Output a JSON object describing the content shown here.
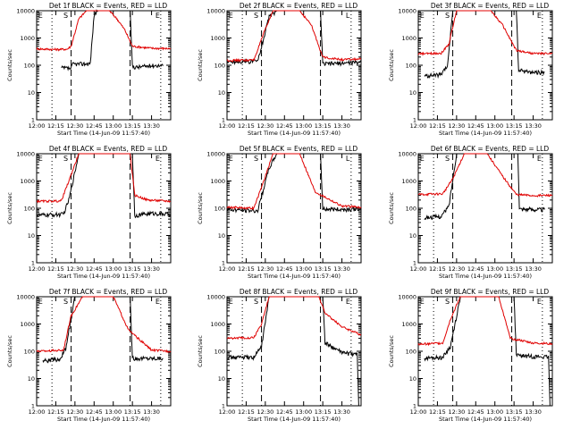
{
  "figure": {
    "background": "#ffffff",
    "event_color": "#000000",
    "lld_color": "#e00000"
  },
  "chart_data": [
    {
      "type": "line",
      "title": "Det 1f BLACK = Events, RED = LLD",
      "xlabel": "Start Time (14-Jun-09 11:57:40)",
      "ylabel": "Counts/sec",
      "xticks": [
        "12:00",
        "12:15",
        "12:30",
        "12:45",
        "13:00",
        "13:15",
        "13:30"
      ],
      "yticks": [
        "1",
        "10",
        "100",
        "1000",
        "10000"
      ],
      "markers": [
        "E",
        "S",
        "E"
      ],
      "series": [
        {
          "name": "Events",
          "points": [
            [
              12.32,
              80
            ],
            [
              12.45,
              75
            ],
            [
              12.47,
              110
            ],
            [
              12.7,
              115
            ],
            [
              12.75,
              7000
            ],
            [
              12.8,
              10000
            ],
            [
              13.0,
              10000
            ],
            [
              13.22,
              10000
            ],
            [
              13.25,
              90
            ],
            [
              13.3,
              85
            ],
            [
              13.55,
              100
            ],
            [
              13.65,
              95
            ]
          ]
        },
        {
          "name": "LLD",
          "points": [
            [
              12.0,
              400
            ],
            [
              12.25,
              380
            ],
            [
              12.4,
              390
            ],
            [
              12.45,
              500
            ],
            [
              12.55,
              5000
            ],
            [
              12.65,
              10000
            ],
            [
              12.95,
              10000
            ],
            [
              13.05,
              5000
            ],
            [
              13.15,
              2000
            ],
            [
              13.25,
              500
            ],
            [
              13.5,
              420
            ],
            [
              13.75,
              410
            ]
          ]
        }
      ]
    },
    {
      "type": "line",
      "title": "Det 2f BLACK = Events, RED = LLD",
      "xlabel": "Start Time (14-Jun-09 11:57:40)",
      "ylabel": "Counts/sec",
      "xticks": [
        "12:00",
        "12:15",
        "12:30",
        "12:45",
        "13:00",
        "13:15",
        "13:30"
      ],
      "yticks": [
        "1",
        "10",
        "100",
        "1000",
        "10000"
      ],
      "markers": [
        "E",
        "S",
        "L"
      ],
      "series": [
        {
          "name": "Events",
          "points": [
            [
              12.0,
              130
            ],
            [
              12.4,
              140
            ],
            [
              12.55,
              6000
            ],
            [
              12.65,
              10000
            ],
            [
              13.22,
              10000
            ],
            [
              13.25,
              110
            ],
            [
              13.5,
              120
            ],
            [
              13.75,
              130
            ]
          ]
        },
        {
          "name": "LLD",
          "points": [
            [
              12.0,
              150
            ],
            [
              12.35,
              155
            ],
            [
              12.48,
              1500
            ],
            [
              12.6,
              10000
            ],
            [
              12.95,
              10000
            ],
            [
              13.1,
              3000
            ],
            [
              13.25,
              200
            ],
            [
              13.5,
              160
            ],
            [
              13.75,
              170
            ]
          ]
        }
      ]
    },
    {
      "type": "line",
      "title": "Det 3f BLACK = Events, RED = LLD",
      "xlabel": "Start Time (14-Jun-09 11:57:40)",
      "ylabel": "Counts/sec",
      "xticks": [
        "12:00",
        "12:15",
        "12:30",
        "12:45",
        "13:00",
        "13:15",
        "13:30"
      ],
      "yticks": [
        "1",
        "10",
        "100",
        "1000",
        "10000"
      ],
      "markers": [
        "E",
        "S",
        "E"
      ],
      "series": [
        {
          "name": "Events",
          "points": [
            [
              12.08,
              40
            ],
            [
              12.3,
              45
            ],
            [
              12.38,
              90
            ],
            [
              12.45,
              10000
            ],
            [
              13.28,
              10000
            ],
            [
              13.31,
              65
            ],
            [
              13.5,
              55
            ],
            [
              13.65,
              55
            ]
          ]
        },
        {
          "name": "LLD",
          "points": [
            [
              12.0,
              260
            ],
            [
              12.3,
              280
            ],
            [
              12.4,
              600
            ],
            [
              12.5,
              10000
            ],
            [
              12.95,
              10000
            ],
            [
              13.1,
              3000
            ],
            [
              13.28,
              350
            ],
            [
              13.5,
              270
            ],
            [
              13.75,
              270
            ]
          ]
        }
      ]
    },
    {
      "type": "line",
      "title": "Det 4f BLACK = Events, RED = LLD",
      "xlabel": "Start Time (14-Jun-09 11:57:40)",
      "ylabel": "Counts/sec",
      "xticks": [
        "12:00",
        "12:15",
        "12:30",
        "12:45",
        "13:00",
        "13:15",
        "13:30"
      ],
      "yticks": [
        "1",
        "10",
        "100",
        "1000",
        "10000"
      ],
      "markers": [
        "E",
        "S",
        "E"
      ],
      "series": [
        {
          "name": "Events",
          "points": [
            [
              12.0,
              55
            ],
            [
              12.35,
              60
            ],
            [
              12.42,
              200
            ],
            [
              12.55,
              10000
            ],
            [
              13.25,
              10000
            ],
            [
              13.28,
              55
            ],
            [
              13.5,
              65
            ],
            [
              13.75,
              60
            ]
          ]
        },
        {
          "name": "LLD",
          "points": [
            [
              12.0,
              180
            ],
            [
              12.32,
              185
            ],
            [
              12.4,
              700
            ],
            [
              12.55,
              10000
            ],
            [
              13.22,
              10000
            ],
            [
              13.28,
              300
            ],
            [
              13.45,
              200
            ],
            [
              13.75,
              180
            ]
          ]
        }
      ]
    },
    {
      "type": "line",
      "title": "Det 5f BLACK = Events, RED = LLD",
      "xlabel": "Start Time (14-Jun-09 11:57:40)",
      "ylabel": "Counts/sec",
      "xticks": [
        "12:00",
        "12:15",
        "12:30",
        "12:45",
        "13:00",
        "13:15",
        "13:30"
      ],
      "yticks": [
        "1",
        "10",
        "100",
        "1000",
        "10000"
      ],
      "markers": [
        "E",
        "S",
        "L"
      ],
      "series": [
        {
          "name": "Events",
          "points": [
            [
              12.0,
              90
            ],
            [
              12.4,
              80
            ],
            [
              12.55,
              3000
            ],
            [
              12.65,
              10000
            ],
            [
              13.22,
              10000
            ],
            [
              13.25,
              95
            ],
            [
              13.5,
              90
            ],
            [
              13.75,
              95
            ]
          ]
        },
        {
          "name": "LLD",
          "points": [
            [
              12.0,
              110
            ],
            [
              12.35,
              100
            ],
            [
              12.48,
              1000
            ],
            [
              12.6,
              10000
            ],
            [
              12.95,
              10000
            ],
            [
              13.15,
              400
            ],
            [
              13.5,
              120
            ],
            [
              13.75,
              110
            ]
          ]
        }
      ]
    },
    {
      "type": "line",
      "title": "Det 6f BLACK = Events, RED = LLD",
      "xlabel": "Start Time (14-Jun-09 11:57:40)",
      "ylabel": "Counts/sec",
      "xticks": [
        "12:00",
        "12:15",
        "12:30",
        "12:45",
        "13:00",
        "13:15",
        "13:30"
      ],
      "yticks": [
        "1",
        "10",
        "100",
        "1000",
        "10000"
      ],
      "markers": [
        "E",
        "S",
        "E"
      ],
      "series": [
        {
          "name": "Events",
          "points": [
            [
              12.08,
              45
            ],
            [
              12.3,
              50
            ],
            [
              12.4,
              120
            ],
            [
              12.5,
              10000
            ],
            [
              13.3,
              10000
            ],
            [
              13.32,
              95
            ],
            [
              13.5,
              90
            ],
            [
              13.65,
              90
            ]
          ]
        },
        {
          "name": "LLD",
          "points": [
            [
              12.0,
              320
            ],
            [
              12.32,
              340
            ],
            [
              12.45,
              1200
            ],
            [
              12.6,
              10000
            ],
            [
              12.9,
              10000
            ],
            [
              13.1,
              1500
            ],
            [
              13.28,
              320
            ],
            [
              13.5,
              290
            ],
            [
              13.75,
              300
            ]
          ]
        }
      ]
    },
    {
      "type": "line",
      "title": "Det 7f BLACK = Events, RED = LLD",
      "xlabel": "Start Time (14-Jun-09 11:57:40)",
      "ylabel": "Counts/sec",
      "xticks": [
        "12:00",
        "12:15",
        "12:30",
        "12:45",
        "13:00",
        "13:15",
        "13:30"
      ],
      "yticks": [
        "1",
        "10",
        "100",
        "1000",
        "10000"
      ],
      "markers": [
        "E",
        "S",
        "E"
      ],
      "series": [
        {
          "name": "Events",
          "points": [
            [
              12.08,
              45
            ],
            [
              12.3,
              50
            ],
            [
              12.38,
              120
            ],
            [
              12.5,
              10000
            ],
            [
              13.22,
              10000
            ],
            [
              13.25,
              55
            ],
            [
              13.5,
              55
            ],
            [
              13.65,
              55
            ]
          ]
        },
        {
          "name": "LLD",
          "points": [
            [
              12.0,
              100
            ],
            [
              12.35,
              110
            ],
            [
              12.45,
              2000
            ],
            [
              12.6,
              10000
            ],
            [
              13.0,
              10000
            ],
            [
              13.2,
              600
            ],
            [
              13.5,
              110
            ],
            [
              13.75,
              100
            ]
          ]
        }
      ]
    },
    {
      "type": "line",
      "title": "Det 8f BLACK = Events, RED = LLD",
      "xlabel": "Start Time (14-Jun-09 11:57:40)",
      "ylabel": "Counts/sec",
      "xticks": [
        "12:00",
        "12:15",
        "12:30",
        "12:45",
        "13:00",
        "13:15",
        "13:30"
      ],
      "yticks": [
        "1",
        "10",
        "100",
        "1000",
        "10000"
      ],
      "markers": [
        "E",
        "S",
        "E"
      ],
      "series": [
        {
          "name": "Events",
          "points": [
            [
              12.0,
              60
            ],
            [
              12.35,
              60
            ],
            [
              12.45,
              150
            ],
            [
              12.55,
              10000
            ],
            [
              13.25,
              10000
            ],
            [
              13.28,
              200
            ],
            [
              13.5,
              90
            ],
            [
              13.7,
              75
            ],
            [
              13.72,
              1
            ]
          ]
        },
        {
          "name": "LLD",
          "points": [
            [
              12.0,
              300
            ],
            [
              12.35,
              320
            ],
            [
              12.45,
              1000
            ],
            [
              12.55,
              10000
            ],
            [
              13.2,
              10000
            ],
            [
              13.28,
              2500
            ],
            [
              13.5,
              800
            ],
            [
              13.75,
              400
            ]
          ]
        }
      ]
    },
    {
      "type": "line",
      "title": "Det 9f BLACK = Events, RED = LLD",
      "xlabel": "Start Time (14-Jun-09 11:57:40)",
      "ylabel": "Counts/sec",
      "xticks": [
        "12:00",
        "12:15",
        "12:30",
        "12:45",
        "13:00",
        "13:15",
        "13:30"
      ],
      "yticks": [
        "1",
        "10",
        "100",
        "1000",
        "10000"
      ],
      "markers": [
        "E",
        "S",
        "E"
      ],
      "series": [
        {
          "name": "Events",
          "points": [
            [
              12.08,
              55
            ],
            [
              12.32,
              60
            ],
            [
              12.42,
              150
            ],
            [
              12.55,
              10000
            ],
            [
              13.25,
              10000
            ],
            [
              13.28,
              70
            ],
            [
              13.5,
              65
            ],
            [
              13.7,
              60
            ],
            [
              13.72,
              1
            ]
          ]
        },
        {
          "name": "LLD",
          "points": [
            [
              12.0,
              180
            ],
            [
              12.32,
              200
            ],
            [
              12.42,
              1500
            ],
            [
              12.55,
              10000
            ],
            [
              13.05,
              10000
            ],
            [
              13.2,
              300
            ],
            [
              13.5,
              200
            ],
            [
              13.75,
              190
            ]
          ]
        }
      ]
    }
  ]
}
